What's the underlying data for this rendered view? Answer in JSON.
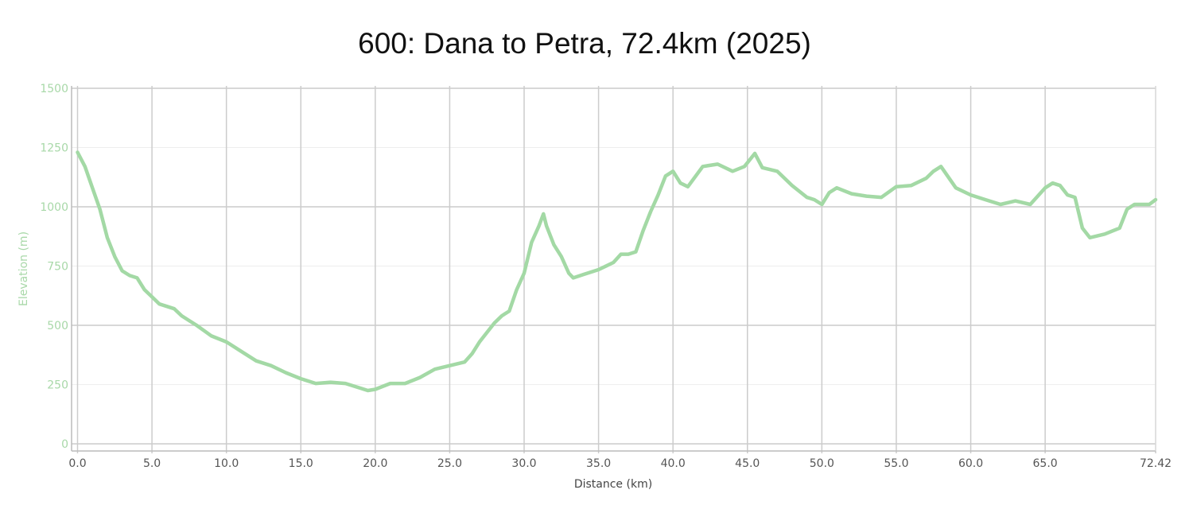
{
  "chart_data": {
    "type": "line",
    "title": "600: Dana to Petra, 72.4km (2025)",
    "xlabel": "Distance (km)",
    "ylabel": "Elevation (m)",
    "xlim": [
      -0.4,
      72.42
    ],
    "ylim": [
      -30,
      1510
    ],
    "x_ticks": [
      0,
      5,
      10,
      15,
      20,
      25,
      30,
      35,
      40,
      45,
      50,
      55,
      60,
      65,
      72.42
    ],
    "x_tick_labels": [
      "0.0",
      "5.0",
      "10.0",
      "15.0",
      "20.0",
      "25.0",
      "30.0",
      "35.0",
      "40.0",
      "45.0",
      "50.0",
      "55.0",
      "60.0",
      "65.0",
      "72.42"
    ],
    "y_ticks": [
      0,
      250,
      500,
      750,
      1000,
      1250,
      1500
    ],
    "y_tick_labels": [
      "0",
      "250",
      "500",
      "750",
      "1000",
      "1250",
      "1500"
    ],
    "grid": true,
    "line_color": "#a3d9a5",
    "series": [
      {
        "x": [
          0,
          0.5,
          1,
          1.5,
          2,
          2.5,
          3,
          3.5,
          4,
          4.5,
          5,
          5.5,
          6,
          6.5,
          7,
          7.5,
          8,
          9,
          10,
          11,
          12,
          13,
          14,
          15,
          16,
          17,
          18,
          19,
          19.5,
          20,
          21,
          22,
          23,
          24,
          25,
          26,
          26.5,
          27,
          28,
          28.5,
          29,
          29.5,
          30,
          30.5,
          31,
          31.3,
          31.5,
          32,
          32.5,
          33,
          33.3,
          34,
          35,
          36,
          36.5,
          37,
          37.5,
          38,
          38.5,
          39,
          39.5,
          40,
          40.5,
          41,
          42,
          43,
          44,
          44.8,
          45.5,
          46,
          47,
          48,
          49,
          49.5,
          50,
          50.5,
          51,
          52,
          53,
          54,
          55,
          56,
          57,
          57.5,
          58,
          59,
          60,
          61,
          62,
          63,
          64,
          65,
          65.5,
          66,
          66.5,
          67,
          67.5,
          68,
          69,
          70,
          70.5,
          71,
          72,
          72.42
        ],
        "y": [
          1230,
          1170,
          1080,
          990,
          870,
          790,
          730,
          710,
          700,
          650,
          620,
          590,
          580,
          570,
          540,
          520,
          500,
          455,
          430,
          390,
          350,
          330,
          300,
          275,
          255,
          260,
          255,
          235,
          225,
          230,
          255,
          255,
          280,
          315,
          330,
          345,
          380,
          430,
          510,
          540,
          560,
          650,
          720,
          850,
          920,
          970,
          920,
          840,
          790,
          720,
          700,
          715,
          735,
          765,
          800,
          800,
          810,
          900,
          980,
          1050,
          1130,
          1150,
          1100,
          1085,
          1170,
          1180,
          1150,
          1170,
          1225,
          1165,
          1150,
          1090,
          1040,
          1030,
          1010,
          1060,
          1080,
          1055,
          1045,
          1040,
          1085,
          1090,
          1120,
          1150,
          1170,
          1080,
          1050,
          1030,
          1010,
          1025,
          1010,
          1080,
          1100,
          1090,
          1050,
          1040,
          910,
          870,
          885,
          910,
          990,
          1010,
          1010,
          1030
        ]
      }
    ]
  }
}
